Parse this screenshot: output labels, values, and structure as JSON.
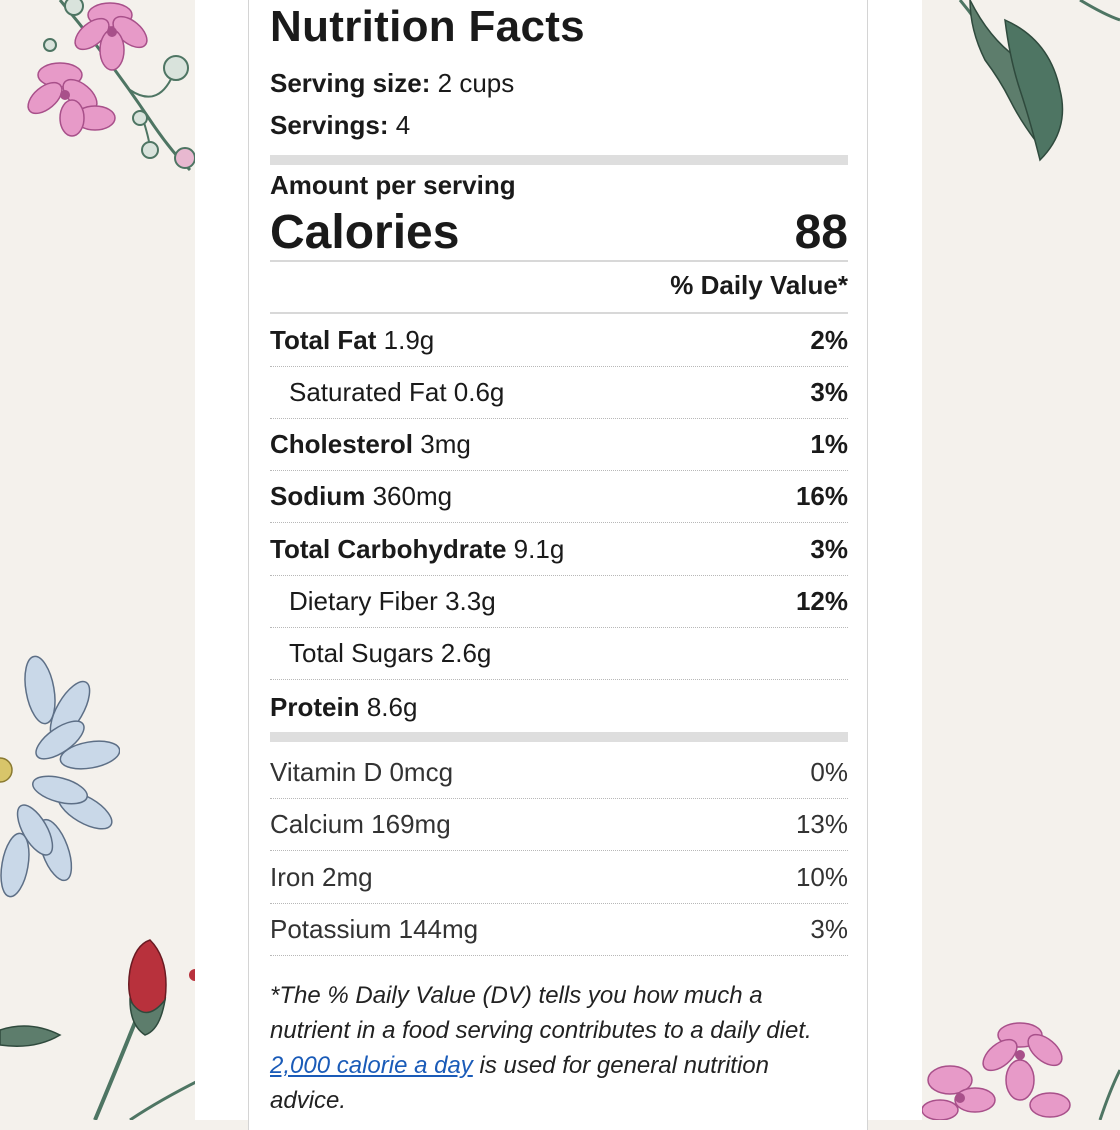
{
  "label": {
    "title": "Nutrition Facts",
    "serving_size_label": "Serving size:",
    "serving_size_value": "2 cups",
    "servings_label": "Servings:",
    "servings_value": "4",
    "amount_per_serving": "Amount per serving",
    "calories_label": "Calories",
    "calories_value": "88",
    "daily_value_header": "% Daily Value*"
  },
  "nutrients": [
    {
      "name": "Total Fat",
      "amount": "1.9g",
      "dv": "2%"
    },
    {
      "name": "Saturated Fat",
      "amount": "0.6g",
      "dv": "3%"
    },
    {
      "name": "Cholesterol",
      "amount": "3mg",
      "dv": "1%"
    },
    {
      "name": "Sodium",
      "amount": "360mg",
      "dv": "16%"
    },
    {
      "name": "Total Carbohydrate",
      "amount": "9.1g",
      "dv": "3%"
    },
    {
      "name": "Dietary Fiber",
      "amount": "3.3g",
      "dv": "12%"
    },
    {
      "name": "Total Sugars",
      "amount": "2.6g",
      "dv": ""
    },
    {
      "name": "Protein",
      "amount": "8.6g",
      "dv": ""
    }
  ],
  "vitamins": [
    {
      "name": "Vitamin D",
      "amount": "0mcg",
      "dv": "0%"
    },
    {
      "name": "Calcium",
      "amount": "169mg",
      "dv": "13%"
    },
    {
      "name": "Iron",
      "amount": "2mg",
      "dv": "10%"
    },
    {
      "name": "Potassium",
      "amount": "144mg",
      "dv": "3%"
    }
  ],
  "footnote": {
    "text_before": "*The % Daily Value (DV) tells you how much a nutrient in a food serving contributes to a daily diet.",
    "link_text": "2,000 calorie a day",
    "text_after": "is used for general nutrition advice."
  },
  "colors": {
    "background": "#f4f1ec",
    "link": "#1a5bb8",
    "pink_flower": "#e79ac8",
    "leaf_green": "#4e7563",
    "blue_flower": "#c9d8e8",
    "red_bud": "#b8313c"
  }
}
